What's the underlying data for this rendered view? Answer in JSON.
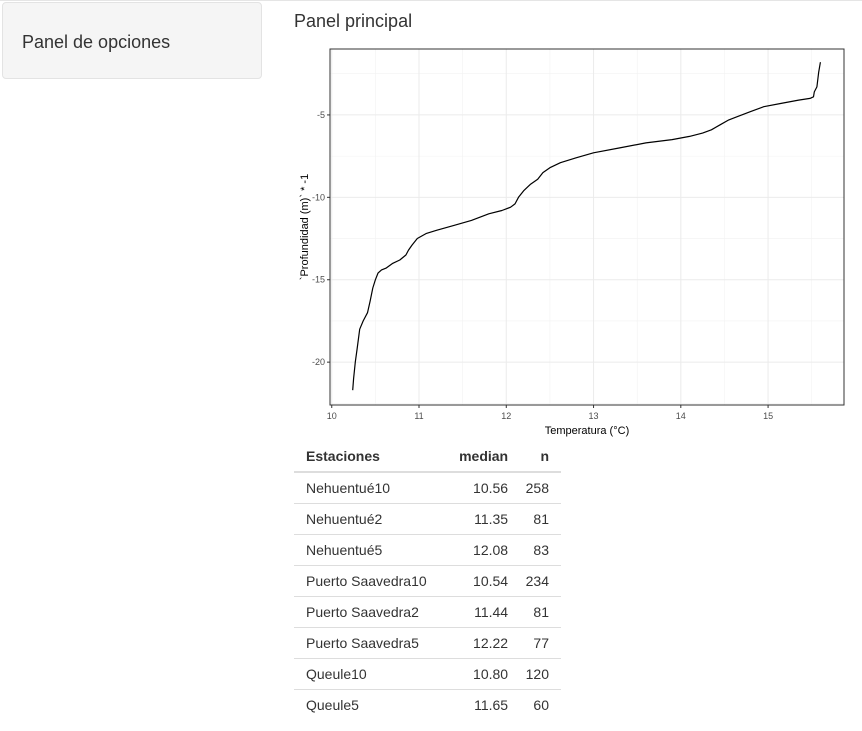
{
  "sidebar": {
    "title": "Panel de opciones"
  },
  "main": {
    "title": "Panel principal"
  },
  "chart_data": {
    "type": "line",
    "title": "",
    "xlabel": "Temperatura (°C)",
    "ylabel": "`Profundidad (m)` * -1",
    "xlim": [
      9.98,
      15.87
    ],
    "ylim": [
      -22.6,
      -1.0
    ],
    "x_ticks": [
      10,
      11,
      12,
      13,
      14,
      15
    ],
    "y_ticks": [
      -5,
      -10,
      -15,
      -20
    ],
    "grid": true,
    "series": [
      {
        "values_x": [
          10.24,
          10.25,
          10.27,
          10.29,
          10.32,
          10.36,
          10.41,
          10.44,
          10.47,
          10.5,
          10.53,
          10.57,
          10.62,
          10.7,
          10.78,
          10.85,
          10.88,
          10.92,
          10.98,
          11.08,
          11.2,
          11.4,
          11.6,
          11.8,
          11.95,
          12.05,
          12.1,
          12.14,
          12.2,
          12.28,
          12.36,
          12.42,
          12.5,
          12.62,
          12.8,
          13.0,
          13.3,
          13.6,
          13.9,
          14.1,
          14.25,
          14.35,
          14.45,
          14.55,
          14.65,
          14.8,
          14.95,
          15.15,
          15.35,
          15.48,
          15.52,
          15.53,
          15.56,
          15.58,
          15.6
        ],
        "values_y": [
          -21.7,
          -21.0,
          -20.0,
          -19.2,
          -18.0,
          -17.5,
          -17.0,
          -16.3,
          -15.5,
          -15.0,
          -14.6,
          -14.4,
          -14.3,
          -14.0,
          -13.8,
          -13.5,
          -13.2,
          -12.9,
          -12.5,
          -12.2,
          -12.0,
          -11.7,
          -11.4,
          -11.0,
          -10.8,
          -10.6,
          -10.4,
          -10.0,
          -9.6,
          -9.2,
          -8.9,
          -8.5,
          -8.2,
          -7.9,
          -7.6,
          -7.3,
          -7.0,
          -6.7,
          -6.5,
          -6.3,
          -6.1,
          -5.9,
          -5.6,
          -5.3,
          -5.1,
          -4.8,
          -4.5,
          -4.3,
          -4.1,
          -4.0,
          -3.9,
          -3.6,
          -3.3,
          -2.4,
          -1.8
        ]
      }
    ]
  },
  "table": {
    "headers": [
      "Estaciones",
      "median",
      "n"
    ],
    "rows": [
      [
        "Nehuentué10",
        "10.56",
        "258"
      ],
      [
        "Nehuentué2",
        "11.35",
        "81"
      ],
      [
        "Nehuentué5",
        "12.08",
        "83"
      ],
      [
        "Puerto Saavedra10",
        "10.54",
        "234"
      ],
      [
        "Puerto Saavedra2",
        "11.44",
        "81"
      ],
      [
        "Puerto Saavedra5",
        "12.22",
        "77"
      ],
      [
        "Queule10",
        "10.80",
        "120"
      ],
      [
        "Queule5",
        "11.65",
        "60"
      ]
    ]
  }
}
